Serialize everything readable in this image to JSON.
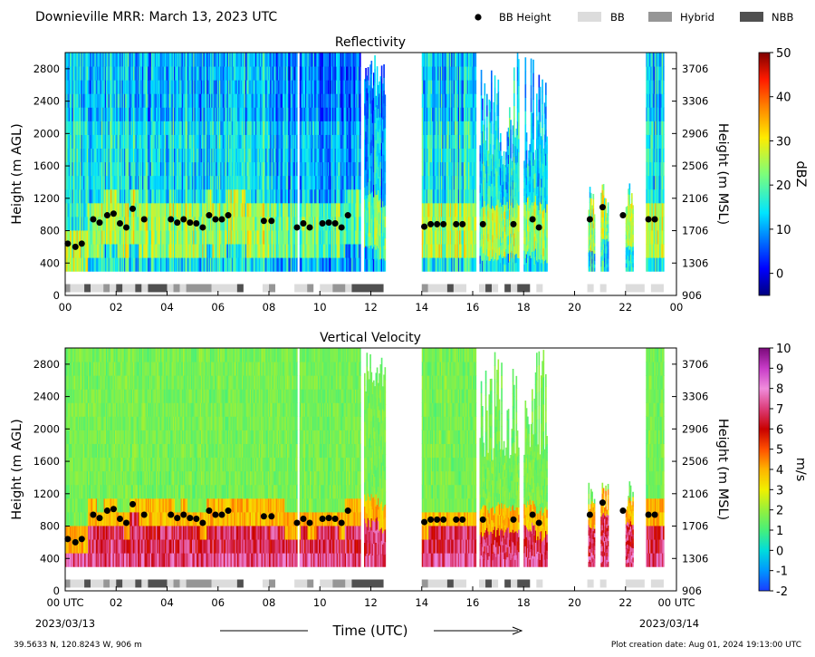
{
  "header": {
    "title": "Downieville MRR:  March 13, 2023 UTC",
    "legend": [
      {
        "key": "bb_height",
        "label": "BB Height",
        "type": "dot",
        "color": "#000000"
      },
      {
        "key": "bb",
        "label": "BB",
        "type": "box",
        "color": "#dcdcdc"
      },
      {
        "key": "hybrid",
        "label": "Hybrid",
        "type": "box",
        "color": "#969696"
      },
      {
        "key": "nbb",
        "label": "NBB",
        "type": "box",
        "color": "#505050"
      }
    ]
  },
  "footer": {
    "location": "39.5633 N, 120.8243 W, 906 m",
    "created": "Plot creation date: Aug 01, 2024 19:13:00 UTC",
    "xlabel": "Time (UTC)",
    "start_date": "2023/03/13",
    "end_date": "2023/03/14"
  },
  "chart_data": [
    {
      "type": "heatmap",
      "title": "Reflectivity",
      "ylabel": "Height (m AGL)",
      "y2label": "Height (m MSL)",
      "xlim": [
        0,
        24
      ],
      "ylim": [
        0,
        3000
      ],
      "y2lim": [
        906,
        3906
      ],
      "x_ticks": [
        "00",
        "02",
        "04",
        "06",
        "08",
        "10",
        "12",
        "14",
        "16",
        "18",
        "20",
        "22",
        "00"
      ],
      "y_ticks": [
        0,
        400,
        800,
        1200,
        1600,
        2000,
        2400,
        2800
      ],
      "y2_ticks": [
        906,
        1306,
        1706,
        2106,
        2506,
        2906,
        3306,
        3706
      ],
      "colorbar": {
        "label": "dBZ",
        "min": -5,
        "max": 50,
        "ticks": [
          0,
          10,
          20,
          30,
          40,
          50
        ],
        "cmap": "jet"
      }
    },
    {
      "type": "heatmap",
      "title": "Vertical Velocity",
      "ylabel": "Height (m AGL)",
      "y2label": "Height (m MSL)",
      "xlim": [
        0,
        24
      ],
      "ylim": [
        0,
        3000
      ],
      "y2lim": [
        906,
        3906
      ],
      "x_ticks": [
        "00 UTC",
        "02",
        "04",
        "06",
        "08",
        "10",
        "12",
        "14",
        "16",
        "18",
        "20",
        "22",
        "00 UTC"
      ],
      "y_ticks": [
        0,
        400,
        800,
        1200,
        1600,
        2000,
        2400,
        2800
      ],
      "y2_ticks": [
        906,
        1306,
        1706,
        2106,
        2506,
        2906,
        3306,
        3706
      ],
      "colorbar": {
        "label": "m/s",
        "min": -2,
        "max": 10,
        "ticks": [
          -2,
          -1,
          0,
          1,
          2,
          3,
          4,
          5,
          6,
          7,
          8,
          9,
          10
        ],
        "cmap": "velocity"
      }
    }
  ],
  "data_coverage": [
    [
      0,
      9.1
    ],
    [
      9.2,
      11.6
    ],
    [
      11.7,
      12.55
    ],
    [
      14.0,
      16.1
    ],
    [
      16.25,
      17.8
    ],
    [
      18.0,
      18.9
    ],
    [
      20.5,
      20.8
    ],
    [
      21.0,
      21.3
    ],
    [
      22.0,
      22.3
    ],
    [
      22.8,
      23.5
    ]
  ],
  "bb_height": [
    {
      "t": 0.1,
      "h": 640
    },
    {
      "t": 0.4,
      "h": 600
    },
    {
      "t": 0.65,
      "h": 640
    },
    {
      "t": 1.1,
      "h": 940
    },
    {
      "t": 1.35,
      "h": 900
    },
    {
      "t": 1.65,
      "h": 990
    },
    {
      "t": 1.9,
      "h": 1010
    },
    {
      "t": 2.15,
      "h": 890
    },
    {
      "t": 2.4,
      "h": 840
    },
    {
      "t": 2.65,
      "h": 1070
    },
    {
      "t": 3.1,
      "h": 940
    },
    {
      "t": 4.15,
      "h": 940
    },
    {
      "t": 4.4,
      "h": 900
    },
    {
      "t": 4.65,
      "h": 940
    },
    {
      "t": 4.9,
      "h": 900
    },
    {
      "t": 5.15,
      "h": 890
    },
    {
      "t": 5.4,
      "h": 840
    },
    {
      "t": 5.65,
      "h": 990
    },
    {
      "t": 5.9,
      "h": 940
    },
    {
      "t": 6.15,
      "h": 940
    },
    {
      "t": 6.4,
      "h": 990
    },
    {
      "t": 7.8,
      "h": 920
    },
    {
      "t": 8.1,
      "h": 920
    },
    {
      "t": 9.1,
      "h": 840
    },
    {
      "t": 9.35,
      "h": 890
    },
    {
      "t": 9.6,
      "h": 840
    },
    {
      "t": 10.1,
      "h": 890
    },
    {
      "t": 10.35,
      "h": 900
    },
    {
      "t": 10.6,
      "h": 890
    },
    {
      "t": 10.85,
      "h": 840
    },
    {
      "t": 11.1,
      "h": 990
    },
    {
      "t": 14.1,
      "h": 850
    },
    {
      "t": 14.35,
      "h": 880
    },
    {
      "t": 14.6,
      "h": 880
    },
    {
      "t": 14.85,
      "h": 880
    },
    {
      "t": 15.35,
      "h": 880
    },
    {
      "t": 15.6,
      "h": 880
    },
    {
      "t": 16.4,
      "h": 880
    },
    {
      "t": 17.6,
      "h": 880
    },
    {
      "t": 18.35,
      "h": 940
    },
    {
      "t": 18.6,
      "h": 840
    },
    {
      "t": 20.6,
      "h": 940
    },
    {
      "t": 21.1,
      "h": 1090
    },
    {
      "t": 21.9,
      "h": 990
    },
    {
      "t": 22.9,
      "h": 940
    },
    {
      "t": 23.15,
      "h": 940
    }
  ],
  "bb_class": [
    {
      "start": 0.0,
      "end": 0.2,
      "class": "hybrid"
    },
    {
      "start": 0.2,
      "end": 0.75,
      "class": "bb"
    },
    {
      "start": 0.75,
      "end": 1.0,
      "class": "nbb"
    },
    {
      "start": 1.0,
      "end": 1.5,
      "class": "bb"
    },
    {
      "start": 1.5,
      "end": 1.75,
      "class": "hybrid"
    },
    {
      "start": 1.75,
      "end": 2.0,
      "class": "bb"
    },
    {
      "start": 2.0,
      "end": 2.25,
      "class": "nbb"
    },
    {
      "start": 2.25,
      "end": 2.75,
      "class": "bb"
    },
    {
      "start": 2.75,
      "end": 3.0,
      "class": "nbb"
    },
    {
      "start": 3.0,
      "end": 3.25,
      "class": "bb"
    },
    {
      "start": 3.25,
      "end": 4.0,
      "class": "nbb"
    },
    {
      "start": 4.0,
      "end": 4.25,
      "class": "bb"
    },
    {
      "start": 4.25,
      "end": 4.5,
      "class": "hybrid"
    },
    {
      "start": 4.5,
      "end": 4.75,
      "class": "bb"
    },
    {
      "start": 4.75,
      "end": 5.75,
      "class": "hybrid"
    },
    {
      "start": 5.75,
      "end": 6.75,
      "class": "bb"
    },
    {
      "start": 6.75,
      "end": 7.0,
      "class": "nbb"
    },
    {
      "start": 7.75,
      "end": 8.0,
      "class": "bb"
    },
    {
      "start": 8.0,
      "end": 8.25,
      "class": "hybrid"
    },
    {
      "start": 9.0,
      "end": 9.5,
      "class": "bb"
    },
    {
      "start": 9.5,
      "end": 9.75,
      "class": "hybrid"
    },
    {
      "start": 10.0,
      "end": 10.5,
      "class": "bb"
    },
    {
      "start": 10.5,
      "end": 11.0,
      "class": "hybrid"
    },
    {
      "start": 11.0,
      "end": 11.25,
      "class": "bb"
    },
    {
      "start": 11.25,
      "end": 12.5,
      "class": "nbb"
    },
    {
      "start": 14.0,
      "end": 14.25,
      "class": "hybrid"
    },
    {
      "start": 14.25,
      "end": 15.0,
      "class": "bb"
    },
    {
      "start": 15.0,
      "end": 15.25,
      "class": "nbb"
    },
    {
      "start": 15.25,
      "end": 15.75,
      "class": "bb"
    },
    {
      "start": 16.25,
      "end": 16.5,
      "class": "bb"
    },
    {
      "start": 16.5,
      "end": 16.75,
      "class": "nbb"
    },
    {
      "start": 16.75,
      "end": 17.0,
      "class": "bb"
    },
    {
      "start": 17.25,
      "end": 17.5,
      "class": "nbb"
    },
    {
      "start": 17.5,
      "end": 17.75,
      "class": "bb"
    },
    {
      "start": 17.75,
      "end": 18.25,
      "class": "nbb"
    },
    {
      "start": 18.5,
      "end": 18.75,
      "class": "bb"
    },
    {
      "start": 20.5,
      "end": 20.75,
      "class": "bb"
    },
    {
      "start": 21.0,
      "end": 21.25,
      "class": "bb"
    },
    {
      "start": 22.0,
      "end": 22.75,
      "class": "bb"
    },
    {
      "start": 23.0,
      "end": 23.5,
      "class": "bb"
    }
  ]
}
